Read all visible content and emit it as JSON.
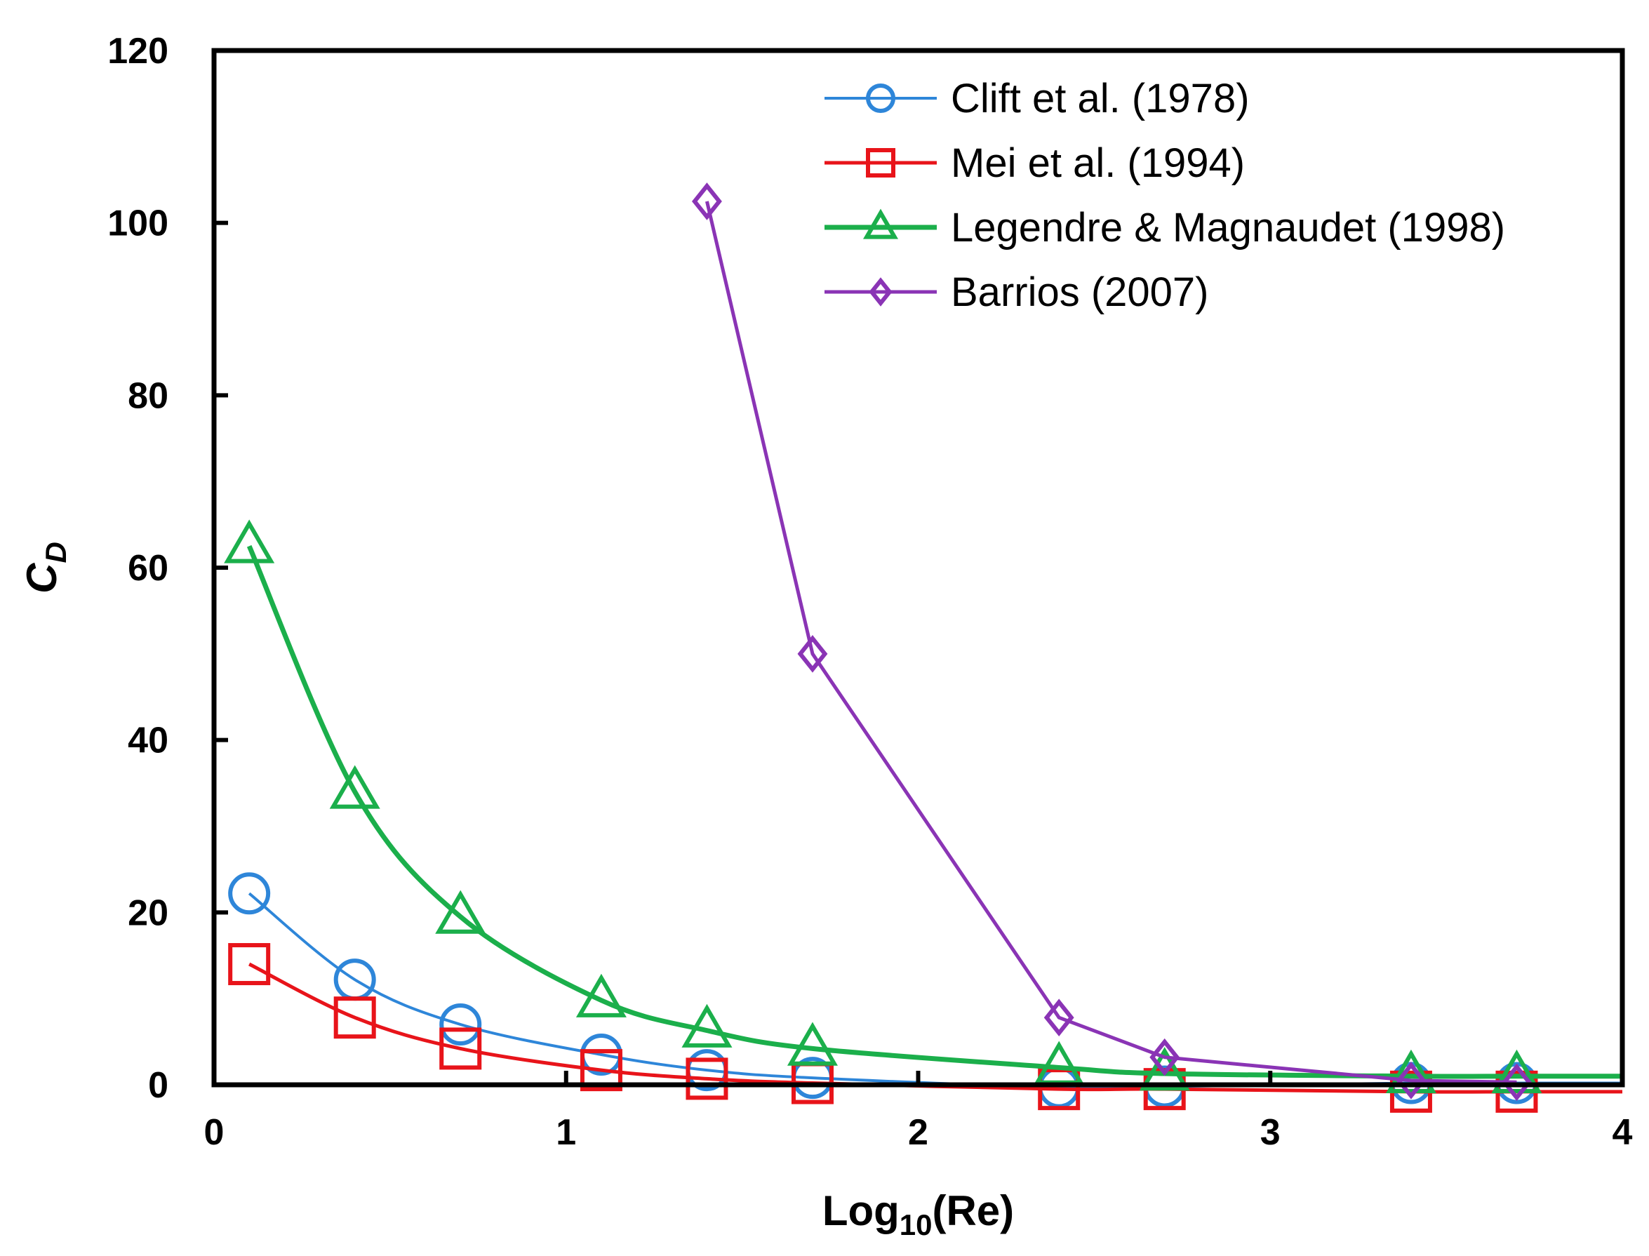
{
  "chart_data": {
    "type": "line",
    "title": "",
    "xlabel": {
      "prefix": "Log",
      "sub": "10",
      "suffix": "(Re)"
    },
    "ylabel": {
      "main": "C",
      "sub": "D"
    },
    "xlim": [
      0,
      4
    ],
    "ylim": [
      0,
      120
    ],
    "xticks": [
      0,
      1,
      2,
      3,
      4
    ],
    "yticks": [
      0,
      20,
      40,
      60,
      80,
      100,
      120
    ],
    "xtick_labels": [
      "0",
      "1",
      "2",
      "3",
      "4"
    ],
    "ytick_labels": [
      "0",
      "20",
      "40",
      "60",
      "80",
      "100",
      "120"
    ],
    "grid": false,
    "legend_position": "top-right",
    "series": [
      {
        "name": "Clift et al. (1978)",
        "color": "#2E86D9",
        "marker": "circle",
        "x": [
          0.1,
          0.4,
          0.7,
          1.1,
          1.4,
          1.7,
          2.4,
          2.7,
          3.4,
          3.7
        ],
        "y": [
          22.2,
          12.2,
          7.0,
          3.5,
          1.7,
          0.8,
          -0.3,
          -0.2,
          0.2,
          0.2
        ]
      },
      {
        "name": "Mei et al. (1994)",
        "color": "#E8141A",
        "marker": "square",
        "x": [
          0.1,
          0.4,
          0.7,
          1.1,
          1.4,
          1.7,
          2.4,
          2.7,
          3.4,
          3.7
        ],
        "y": [
          14.0,
          7.8,
          4.2,
          1.7,
          0.7,
          0.2,
          -0.5,
          -0.5,
          -0.8,
          -0.8
        ]
      },
      {
        "name": "Legendre & Magnaudet (1998)",
        "color": "#1BAF4B",
        "marker": "triangle",
        "x": [
          0.1,
          0.4,
          0.7,
          1.1,
          1.4,
          1.7,
          2.4,
          2.7,
          3.4,
          3.7
        ],
        "y": [
          62.5,
          34.0,
          19.5,
          9.8,
          6.3,
          4.2,
          2.0,
          1.3,
          1.0,
          1.0
        ]
      },
      {
        "name": "Barrios (2007)",
        "color": "#8A34B5",
        "marker": "diamond",
        "x": [
          1.4,
          1.7,
          2.4,
          2.7,
          3.4,
          3.7
        ],
        "y": [
          102.5,
          50.0,
          7.8,
          3.2,
          0.5,
          0.3
        ]
      }
    ]
  }
}
